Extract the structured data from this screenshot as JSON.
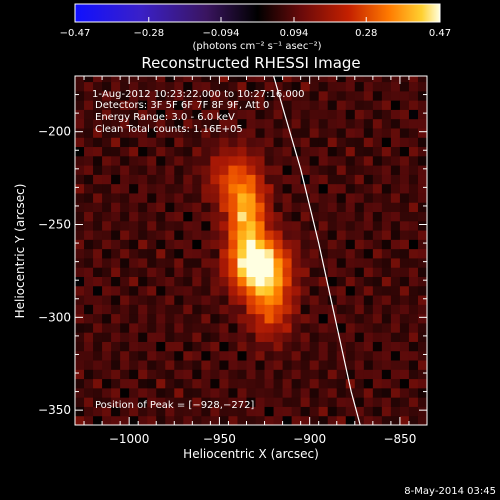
{
  "chart_data": {
    "type": "heatmap",
    "title": "Reconstructed RHESSI Image",
    "xlabel": "Heliocentric X (arcsec)",
    "ylabel": "Heliocentric Y (arcsec)",
    "xlim": [
      -1030,
      -835
    ],
    "ylim": [
      -358,
      -170
    ],
    "xticks": [
      -1000,
      -950,
      -900,
      -850
    ],
    "xtick_labels": [
      "−1000",
      "−950",
      "−900",
      "−850"
    ],
    "yticks": [
      -200,
      -250,
      -300,
      -350
    ],
    "ytick_labels": [
      "−200",
      "−250",
      "−300",
      "−350"
    ],
    "colorbar": {
      "min": -0.47,
      "max": 0.47,
      "ticks": [
        -0.47,
        -0.28,
        -0.094,
        0.094,
        0.28,
        0.47
      ],
      "tick_labels": [
        "−0.47",
        "−0.28",
        "−0.094",
        "0.094",
        "0.28",
        "0.47"
      ],
      "unit_label": "(photons cm⁻² s⁻¹ asec⁻²)"
    },
    "annotations": {
      "time_range": "1‑Aug‑2012 10:23:22.000  to 10:27:16.000",
      "detectors": "Detectors: 3F 5F 6F 7F 8F 9F, Att 0",
      "energy": "Energy Range: 3.0 ‑ 6.0 keV",
      "clean": "Clean    Total counts: 1.16E+05",
      "peak": "Position of Peak = [−928,−272]"
    },
    "peak": {
      "x": -928,
      "y": -272
    },
    "sources": [
      {
        "x": -935,
        "y": -245,
        "sx": 7,
        "sy": 16,
        "amp": 0.34
      },
      {
        "x": -928,
        "y": -272,
        "sx": 10,
        "sy": 10,
        "amp": 0.47
      },
      {
        "x": -922,
        "y": -292,
        "sx": 8,
        "sy": 12,
        "amp": 0.22
      },
      {
        "x": -945,
        "y": -225,
        "sx": 8,
        "sy": 10,
        "amp": 0.14
      }
    ],
    "limb": [
      {
        "x": -920,
        "y": -170
      },
      {
        "x": -905,
        "y": -220
      },
      {
        "x": -895,
        "y": -260
      },
      {
        "x": -886,
        "y": -300
      },
      {
        "x": -877,
        "y": -340
      },
      {
        "x": -872,
        "y": -358
      }
    ]
  },
  "footer": {
    "date": "8‑May‑2014 03:45"
  },
  "colors": {
    "background": "#000000",
    "text": "#ffffff"
  }
}
